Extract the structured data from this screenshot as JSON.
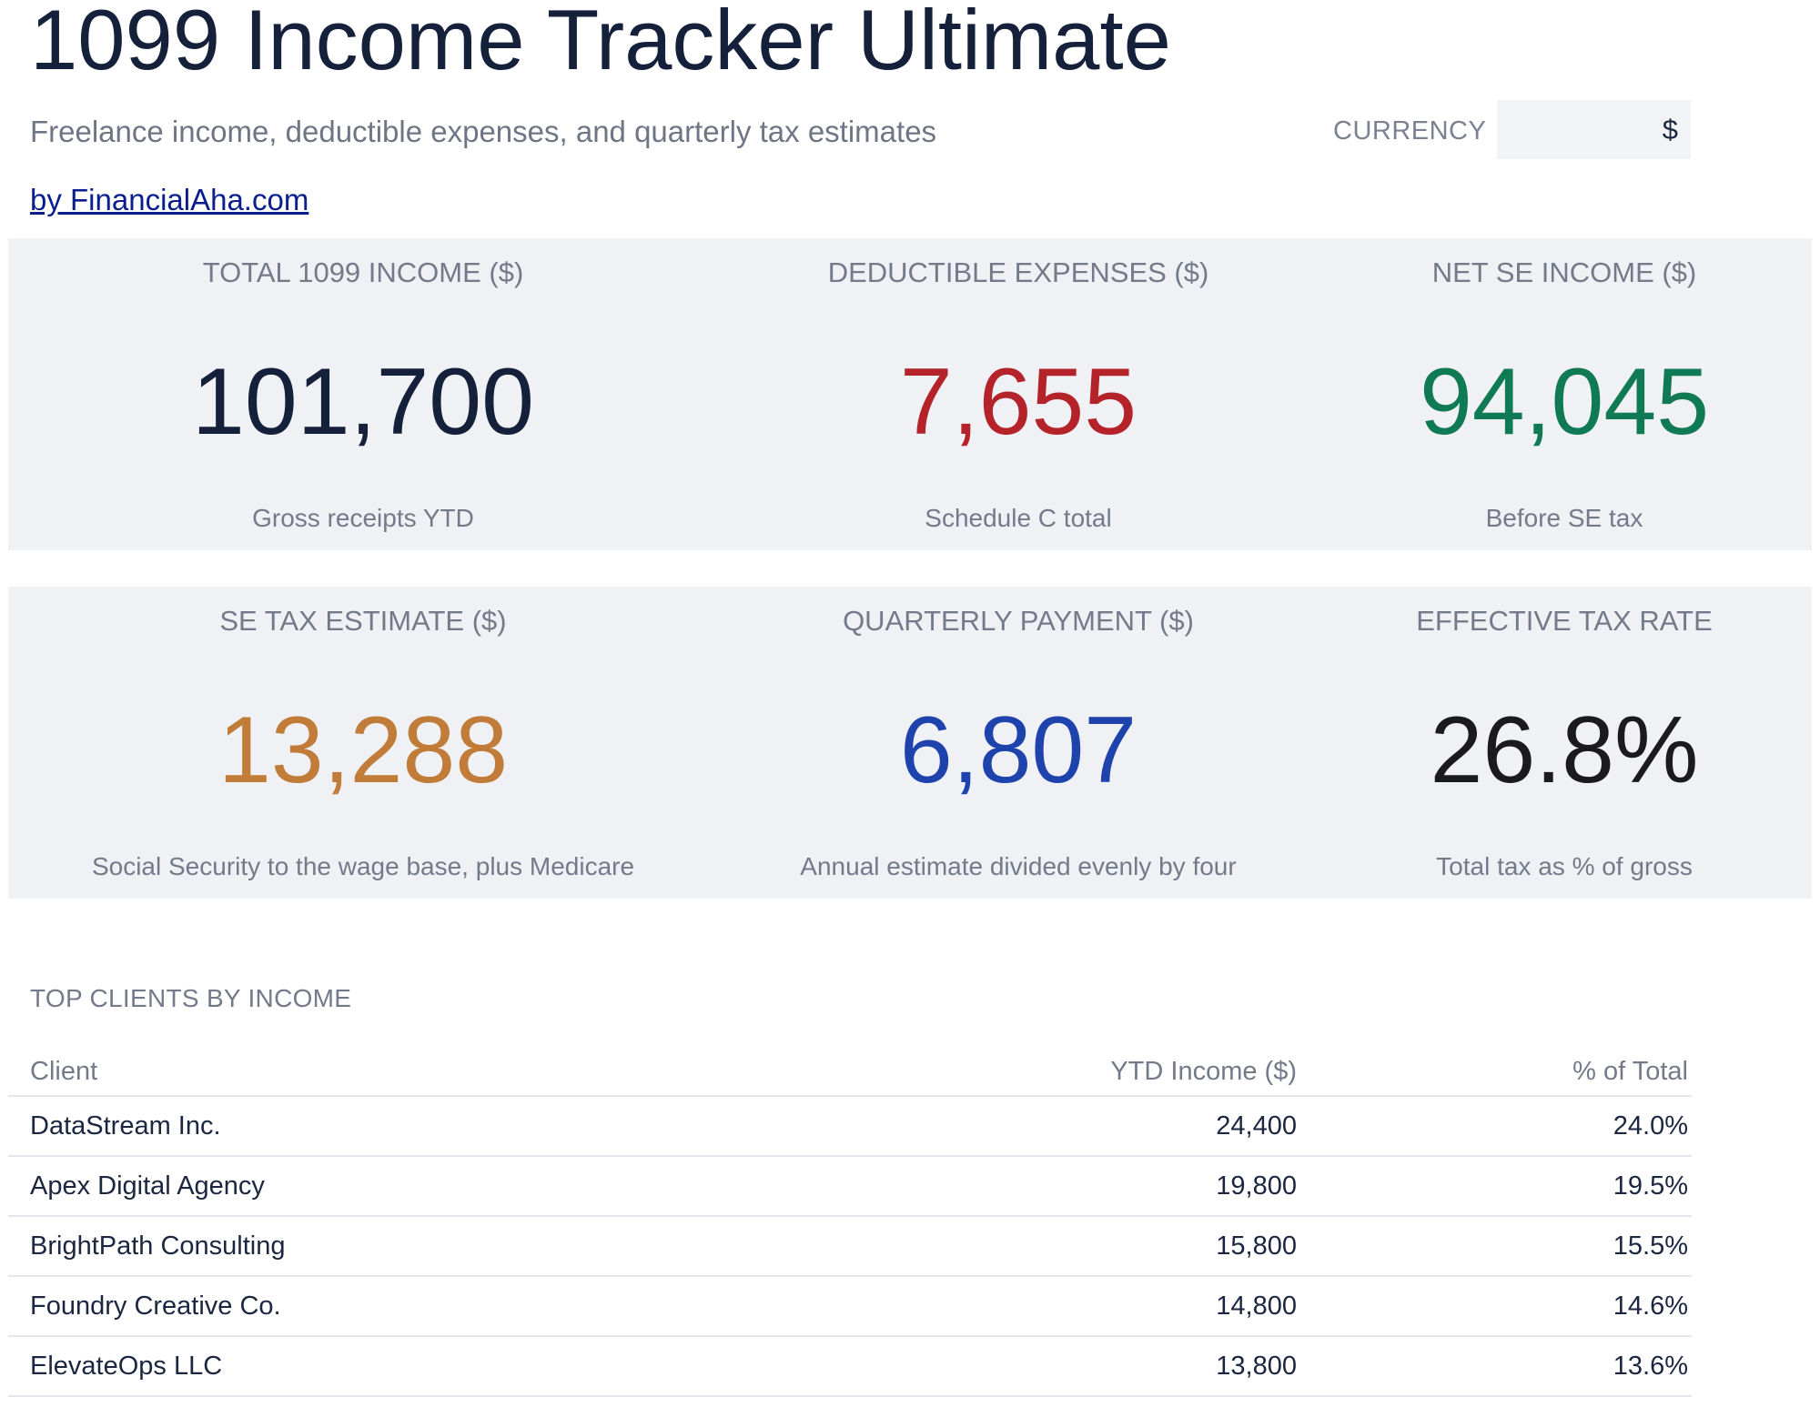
{
  "header": {
    "title": "1099 Income Tracker Ultimate",
    "subtitle": "Freelance income, deductible expenses, and quarterly tax estimates",
    "byline": "by FinancialAha.com",
    "currency_label": "CURRENCY",
    "currency_value": "$"
  },
  "colors": {
    "navy": "#15203b",
    "red": "#b4232a",
    "green": "#0f7a53",
    "amber": "#c07c38",
    "blue": "#1f43ad",
    "dark": "#1b1b1e"
  },
  "metrics_row1": [
    {
      "label": "TOTAL 1099 INCOME ($)",
      "value": "101,700",
      "sub": "Gross receipts YTD"
    },
    {
      "label": "DEDUCTIBLE EXPENSES ($)",
      "value": "7,655",
      "sub": "Schedule C total"
    },
    {
      "label": "NET SE INCOME ($)",
      "value": "94,045",
      "sub": "Before SE tax"
    }
  ],
  "metrics_row2": [
    {
      "label": "SE TAX ESTIMATE ($)",
      "value": "13,288",
      "sub": "Social Security to the wage base, plus Medicare"
    },
    {
      "label": "QUARTERLY PAYMENT ($)",
      "value": "6,807",
      "sub": "Annual estimate divided evenly by four"
    },
    {
      "label": "EFFECTIVE TAX RATE",
      "value": "26.8%",
      "sub": "Total tax as % of gross"
    }
  ],
  "clients": {
    "section_title": "TOP CLIENTS BY INCOME",
    "columns": [
      "Client",
      "YTD Income ($)",
      "% of Total"
    ],
    "rows": [
      [
        "DataStream Inc.",
        "24,400",
        "24.0%"
      ],
      [
        "Apex Digital Agency",
        "19,800",
        "19.5%"
      ],
      [
        "BrightPath Consulting",
        "15,800",
        "15.5%"
      ],
      [
        "Foundry Creative Co.",
        "14,800",
        "14.6%"
      ],
      [
        "ElevateOps LLC",
        "13,800",
        "13.6%"
      ]
    ]
  }
}
